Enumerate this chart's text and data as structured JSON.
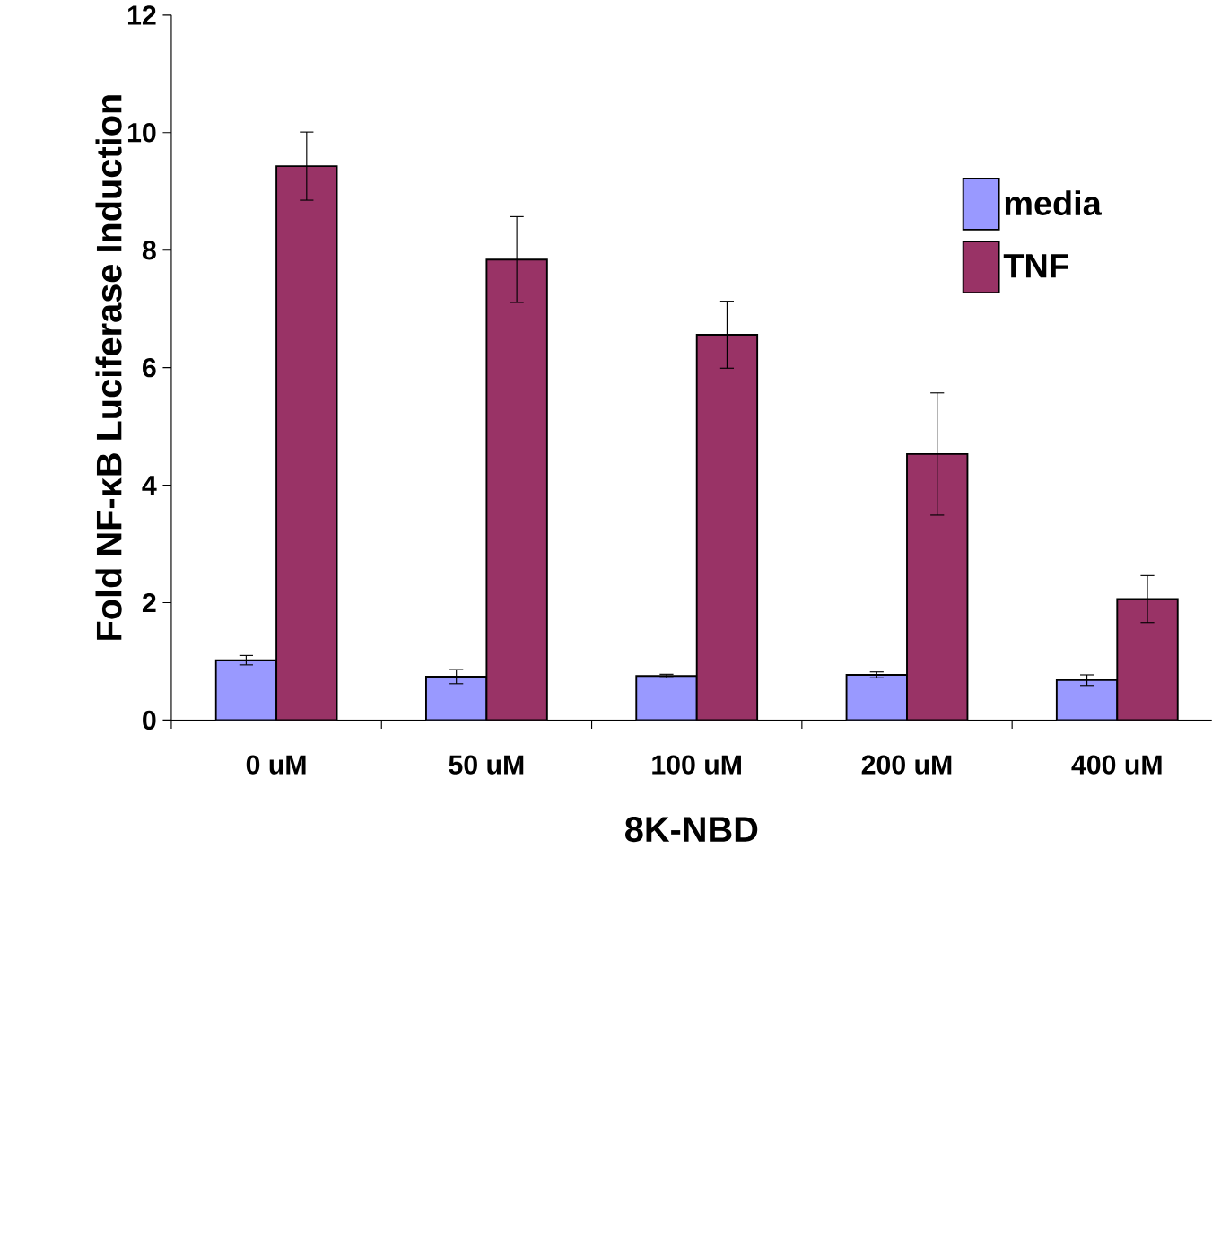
{
  "chart_data": {
    "type": "bar",
    "xlabel": "8K-NBD",
    "ylabel": "Fold NF-κB Luciferase Induction",
    "categories": [
      "0 uM",
      "50 uM",
      "100 uM",
      "200 uM",
      "400 uM"
    ],
    "series": [
      {
        "name": "media",
        "color": "#9999ff",
        "values": [
          1.02,
          0.74,
          0.75,
          0.77,
          0.68
        ],
        "errors": [
          0.08,
          0.12,
          0.03,
          0.05,
          0.09
        ]
      },
      {
        "name": "TNF",
        "color": "#993366",
        "values": [
          9.43,
          7.84,
          6.56,
          4.53,
          2.06
        ],
        "errors": [
          0.58,
          0.73,
          0.57,
          1.04,
          0.4
        ]
      }
    ],
    "ylim": [
      0,
      12
    ],
    "yticks": [
      0,
      2,
      4,
      6,
      8,
      10,
      12
    ],
    "legend": "top right"
  }
}
